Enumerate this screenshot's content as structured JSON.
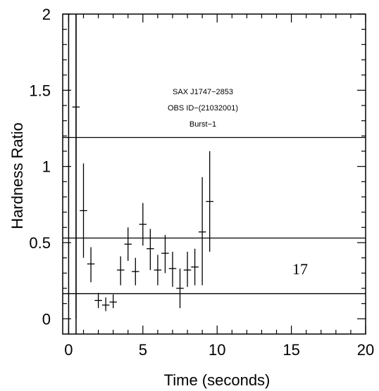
{
  "chart_data": {
    "type": "scatter",
    "xlabel": "Time (seconds)",
    "ylabel": "Hardness Ratio",
    "xlim": [
      -0.4,
      20
    ],
    "ylim": [
      -0.1,
      2
    ],
    "x_ticks": [
      "0",
      "5",
      "10",
      "15",
      "20"
    ],
    "y_ticks": [
      "0",
      "0.5",
      "1",
      "1.5",
      "2"
    ],
    "annotation_lines": [
      "SAX J1747−2853",
      "OBS ID−(21032001)",
      "Burst−1"
    ],
    "panel_label": "17",
    "reference_lines_y": [
      1.19,
      0.53,
      0.165
    ],
    "start_lines_x": [
      0,
      0.5
    ],
    "series": [
      {
        "points": [
          {
            "x": 0.5,
            "y": 1.39,
            "xerr": 0.25,
            "ylo": 0.0,
            "yhi": 2.0
          },
          {
            "x": 1.0,
            "y": 0.71,
            "xerr": 0.25,
            "ylo": 0.4,
            "yhi": 1.02
          },
          {
            "x": 1.5,
            "y": 0.36,
            "xerr": 0.25,
            "ylo": 0.24,
            "yhi": 0.47
          },
          {
            "x": 2.0,
            "y": 0.12,
            "xerr": 0.25,
            "ylo": 0.07,
            "yhi": 0.17
          },
          {
            "x": 2.5,
            "y": 0.09,
            "xerr": 0.25,
            "ylo": 0.05,
            "yhi": 0.14
          },
          {
            "x": 3.0,
            "y": 0.11,
            "xerr": 0.25,
            "ylo": 0.07,
            "yhi": 0.16
          },
          {
            "x": 3.5,
            "y": 0.32,
            "xerr": 0.25,
            "ylo": 0.22,
            "yhi": 0.41
          },
          {
            "x": 4.0,
            "y": 0.49,
            "xerr": 0.25,
            "ylo": 0.38,
            "yhi": 0.6
          },
          {
            "x": 4.5,
            "y": 0.31,
            "xerr": 0.25,
            "ylo": 0.22,
            "yhi": 0.4
          },
          {
            "x": 5.0,
            "y": 0.62,
            "xerr": 0.25,
            "ylo": 0.48,
            "yhi": 0.76
          },
          {
            "x": 5.5,
            "y": 0.46,
            "xerr": 0.25,
            "ylo": 0.32,
            "yhi": 0.59
          },
          {
            "x": 6.0,
            "y": 0.32,
            "xerr": 0.25,
            "ylo": 0.22,
            "yhi": 0.42
          },
          {
            "x": 6.5,
            "y": 0.43,
            "xerr": 0.25,
            "ylo": 0.3,
            "yhi": 0.55
          },
          {
            "x": 7.0,
            "y": 0.33,
            "xerr": 0.25,
            "ylo": 0.21,
            "yhi": 0.44
          },
          {
            "x": 7.5,
            "y": 0.2,
            "xerr": 0.25,
            "ylo": 0.07,
            "yhi": 0.33
          },
          {
            "x": 8.0,
            "y": 0.32,
            "xerr": 0.25,
            "ylo": 0.21,
            "yhi": 0.44
          },
          {
            "x": 8.5,
            "y": 0.34,
            "xerr": 0.25,
            "ylo": 0.22,
            "yhi": 0.46
          },
          {
            "x": 9.0,
            "y": 0.57,
            "xerr": 0.25,
            "ylo": 0.22,
            "yhi": 0.93
          },
          {
            "x": 9.5,
            "y": 0.77,
            "xerr": 0.25,
            "ylo": 0.44,
            "yhi": 1.1
          }
        ]
      }
    ]
  }
}
